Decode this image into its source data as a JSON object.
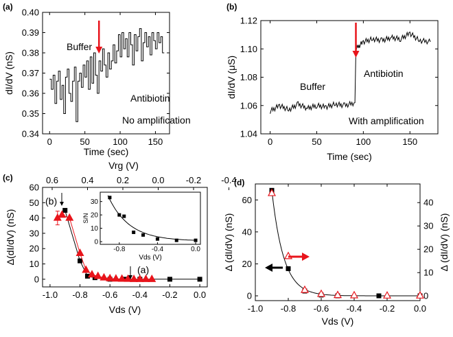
{
  "chart_data": [
    {
      "panel": "(a)",
      "type": "line",
      "xlabel": "Time (sec)",
      "ylabel": "dI/dV (nS)",
      "xlim": [
        -10,
        170
      ],
      "ylim": [
        0.34,
        0.4
      ],
      "xticks": [
        "0",
        "50",
        "100",
        "150"
      ],
      "yticks": [
        "0.34",
        "0.35",
        "0.36",
        "0.37",
        "0.38",
        "0.39",
        "0.40"
      ],
      "annotations": [
        "Buffer",
        "Antibiotin",
        "No amplification"
      ],
      "arrow_time": 70,
      "series": [
        {
          "values_step": 2.5,
          "x_start": 0,
          "values": [
            0.367,
            0.362,
            0.369,
            0.355,
            0.366,
            0.371,
            0.357,
            0.364,
            0.35,
            0.368,
            0.372,
            0.36,
            0.356,
            0.366,
            0.373,
            0.346,
            0.366,
            0.37,
            0.363,
            0.374,
            0.368,
            0.376,
            0.362,
            0.378,
            0.365,
            0.38,
            0.369,
            0.36,
            0.376,
            0.371,
            0.382,
            0.374,
            0.368,
            0.38,
            0.372,
            0.376,
            0.384,
            0.375,
            0.381,
            0.389,
            0.378,
            0.39,
            0.382,
            0.387,
            0.378,
            0.39,
            0.384,
            0.374,
            0.389,
            0.381,
            0.388,
            0.392,
            0.376,
            0.385,
            0.39,
            0.383,
            0.388,
            0.379,
            0.39,
            0.386,
            0.382,
            0.39,
            0.385,
            0.388,
            0.38
          ]
        }
      ]
    },
    {
      "panel": "(b)",
      "type": "line",
      "xlabel": "Time (sec)",
      "ylabel": "dI/dV (μS)",
      "xlim": [
        -10,
        180
      ],
      "ylim": [
        1.04,
        1.12
      ],
      "xticks": [
        "0",
        "50",
        "100",
        "150"
      ],
      "yticks": [
        "1.04",
        "1.06",
        "1.08",
        "1.10",
        "1.12"
      ],
      "annotations": [
        "Buffer",
        "Antibiotin",
        "With amplification"
      ],
      "arrow_time": 92,
      "series": [
        {
          "x": [
            0,
            10,
            20,
            30,
            40,
            50,
            60,
            70,
            80,
            91,
            92,
            100,
            110,
            120,
            130,
            140,
            150,
            160,
            172
          ],
          "values": [
            1.056,
            1.06,
            1.057,
            1.061,
            1.058,
            1.06,
            1.059,
            1.061,
            1.06,
            1.062,
            1.1,
            1.105,
            1.107,
            1.106,
            1.108,
            1.107,
            1.111,
            1.106,
            1.105
          ]
        }
      ]
    },
    {
      "panel": "(c)",
      "type": "line",
      "xlabel": "Vds (V)",
      "ylabel": "Δ(dI/dV) (nS)",
      "top_xlabel": "Vrg (V)",
      "xlim": [
        -1.05,
        0.05
      ],
      "ylim": [
        -5,
        60
      ],
      "xticks": [
        "-1.0",
        "-0.8",
        "-0.6",
        "-0.4",
        "-0.2",
        "0.0"
      ],
      "yticks": [
        "0",
        "10",
        "20",
        "30",
        "40",
        "50",
        "60"
      ],
      "top_xticks": [
        "0.6",
        "0.4",
        "0.2",
        "0.0",
        "-0.2",
        "-0.4"
      ],
      "annotations": [
        "(b)",
        "(a)"
      ],
      "series": [
        {
          "marker": "square",
          "color": "#000000",
          "x": [
            -0.9,
            -0.8,
            -0.75,
            -0.7,
            -0.6,
            -0.5,
            -0.4,
            -0.2,
            0.0
          ],
          "values": [
            45,
            12,
            2,
            1,
            0,
            0,
            0,
            0,
            0
          ]
        },
        {
          "marker": "triangle",
          "color": "#e8141b",
          "x": [
            -0.95,
            -0.92,
            -0.87,
            -0.8,
            -0.76,
            -0.72,
            -0.68,
            -0.64,
            -0.6,
            -0.56,
            -0.52,
            -0.48,
            -0.44,
            -0.4,
            -0.36,
            -0.32
          ],
          "values": [
            40,
            42,
            40,
            17,
            6,
            3,
            2,
            1,
            0.5,
            0.3,
            0.2,
            0.1,
            0,
            0,
            0,
            0
          ]
        }
      ],
      "inset": {
        "type": "scatter",
        "ylabel": "S/N",
        "xlabel": "Vds (V)",
        "xlim": [
          -1.0,
          0.05
        ],
        "ylim": [
          -2,
          37
        ],
        "xticks": [
          "-0.8",
          "-0.4",
          "0.0"
        ],
        "yticks": [
          "0",
          "10",
          "20",
          "30"
        ],
        "x": [
          -0.9,
          -0.8,
          -0.75,
          -0.65,
          -0.55,
          -0.4,
          -0.2,
          0.0
        ],
        "values": [
          33,
          20,
          19,
          7,
          5,
          2,
          1,
          1
        ]
      }
    },
    {
      "panel": "(d)",
      "type": "line",
      "xlabel": "Vds (V)",
      "ylabel": "Δ (dI/dV) (nS)",
      "right_ylabel": "Δ (dI/dV) (nS)",
      "xlim": [
        -1.0,
        0.0
      ],
      "ylim": [
        -3,
        70
      ],
      "right_ylim": [
        -2,
        48
      ],
      "xticks": [
        "-1.0",
        "-0.8",
        "-0.6",
        "-0.4",
        "-0.2",
        "0.0"
      ],
      "yticks": [
        "0",
        "20",
        "40",
        "60"
      ],
      "right_yticks": [
        "0",
        "10",
        "20",
        "30",
        "40"
      ],
      "series": [
        {
          "marker": "square",
          "color": "#000000",
          "axis": "left",
          "x": [
            -0.9,
            -0.8,
            -0.7,
            -0.6,
            -0.5,
            -0.25,
            0.0
          ],
          "values": [
            66,
            17,
            3,
            0.5,
            0,
            0,
            0
          ]
        },
        {
          "marker": "open-triangle",
          "color": "#e8141b",
          "axis": "right",
          "x": [
            -0.9,
            -0.8,
            -0.7,
            -0.6,
            -0.5,
            -0.4,
            -0.2,
            0.0
          ],
          "values": [
            44,
            17,
            2.5,
            0.8,
            0.3,
            0.2,
            0.1,
            0.1
          ]
        }
      ]
    }
  ]
}
